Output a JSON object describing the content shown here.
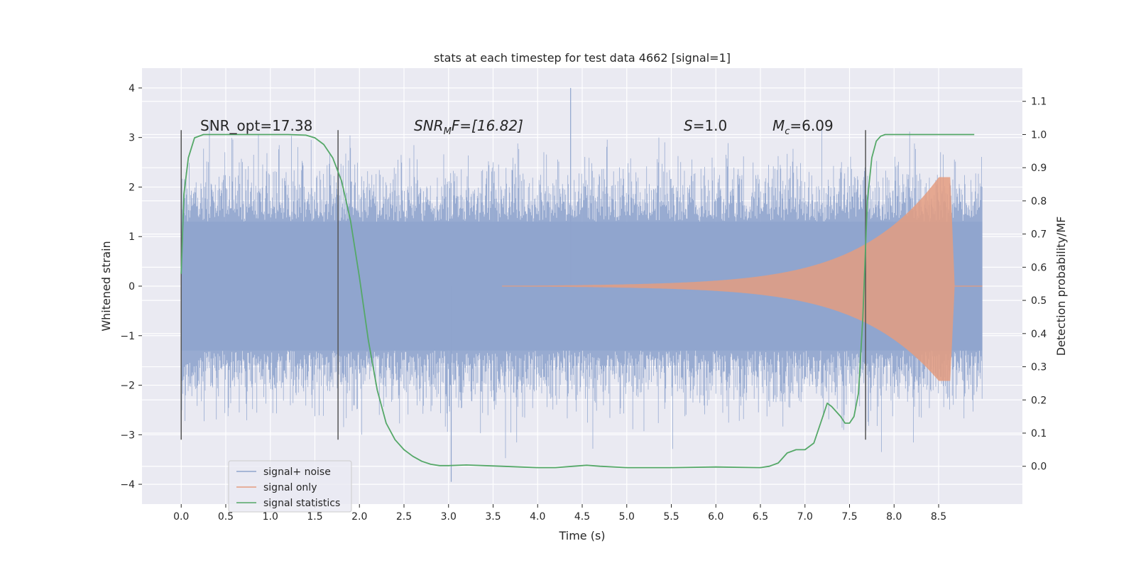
{
  "chart_data": {
    "type": "line",
    "title": "stats at each timestep for test data 4662 [signal=1]",
    "xlabel": "Time (s)",
    "ylabel": "Whitened strain",
    "y2label": "Detection probability/MF",
    "xlim": [
      -0.44,
      9.44
    ],
    "ylim": [
      -4.4,
      4.4
    ],
    "y2lim": [
      -0.114,
      1.2
    ],
    "x_ticks": [
      "0.0",
      "0.5",
      "1.0",
      "1.5",
      "2.0",
      "2.5",
      "3.0",
      "3.5",
      "4.0",
      "4.5",
      "5.0",
      "5.5",
      "6.0",
      "6.5",
      "7.0",
      "7.5",
      "8.0",
      "8.5"
    ],
    "y_ticks": [
      "4",
      "3",
      "2",
      "1",
      "0",
      "−1",
      "−2",
      "−3",
      "−4"
    ],
    "y2_ticks": [
      "1.1",
      "1.0",
      "0.9",
      "0.8",
      "0.7",
      "0.6",
      "0.5",
      "0.4",
      "0.3",
      "0.2",
      "0.1",
      "0.0"
    ],
    "grid": true,
    "legend_position": "lower-left",
    "colors": {
      "background": "#eaeaf2",
      "grid": "#ffffff",
      "noise": "#8fa4cd",
      "signal": "#e49c80",
      "stats": "#55a868",
      "vline": "#555555"
    },
    "annotations": {
      "snr_opt": "SNR_opt=17.38",
      "snr_mf_name": "SNR",
      "snr_mf_sub": "M",
      "snr_mf_tail": "F=[16.82]",
      "s_name": "S",
      "s_value": "=1.0",
      "mc_name": "M",
      "mc_sub": "c",
      "mc_value": "=6.09"
    },
    "legend": [
      "signal+ noise",
      "signal only",
      "signal statistics"
    ],
    "vlines": [
      0.0,
      1.76,
      7.68
    ],
    "vline_range": [
      -3.1,
      3.15
    ],
    "series": [
      {
        "name": "signal+ noise",
        "kind": "strain",
        "t_range": [
          0.0,
          8.99
        ],
        "band": [
          -1.3,
          1.3
        ],
        "peak_max": 4.0,
        "peak_min": -3.95
      },
      {
        "name": "signal only",
        "kind": "chirp",
        "start": 3.6,
        "peak": 8.63,
        "end": 8.68,
        "amplitude_start": 0.01,
        "amplitude_peak": 2.2
      },
      {
        "name": "signal statistics",
        "kind": "probability",
        "x": [
          0.0,
          0.03,
          0.08,
          0.15,
          0.25,
          0.4,
          0.6,
          0.8,
          1.0,
          1.2,
          1.4,
          1.5,
          1.6,
          1.7,
          1.8,
          1.9,
          2.0,
          2.1,
          2.2,
          2.3,
          2.4,
          2.5,
          2.6,
          2.7,
          2.8,
          2.9,
          3.0,
          3.2,
          3.4,
          3.6,
          3.8,
          4.0,
          4.2,
          4.4,
          4.55,
          4.7,
          5.0,
          5.5,
          6.0,
          6.5,
          6.6,
          6.7,
          6.8,
          6.9,
          7.0,
          7.1,
          7.2,
          7.25,
          7.3,
          7.4,
          7.45,
          7.5,
          7.55,
          7.6,
          7.65,
          7.7,
          7.75,
          7.8,
          7.85,
          7.9,
          8.0,
          8.2,
          8.5,
          8.9
        ],
        "y": [
          0.58,
          0.82,
          0.93,
          0.99,
          1.0,
          1.0,
          1.0,
          1.0,
          1.0,
          1.0,
          0.998,
          0.99,
          0.97,
          0.93,
          0.86,
          0.74,
          0.57,
          0.38,
          0.23,
          0.13,
          0.08,
          0.05,
          0.03,
          0.015,
          0.006,
          0.002,
          0.002,
          0.004,
          0.002,
          0.0,
          -0.002,
          -0.004,
          -0.004,
          0.0,
          0.003,
          0.0,
          -0.004,
          -0.004,
          -0.002,
          -0.004,
          0.0,
          0.01,
          0.04,
          0.05,
          0.05,
          0.07,
          0.15,
          0.19,
          0.18,
          0.15,
          0.13,
          0.13,
          0.15,
          0.22,
          0.45,
          0.8,
          0.93,
          0.98,
          0.995,
          1.0,
          1.0,
          1.0,
          1.0,
          1.0
        ]
      }
    ]
  }
}
